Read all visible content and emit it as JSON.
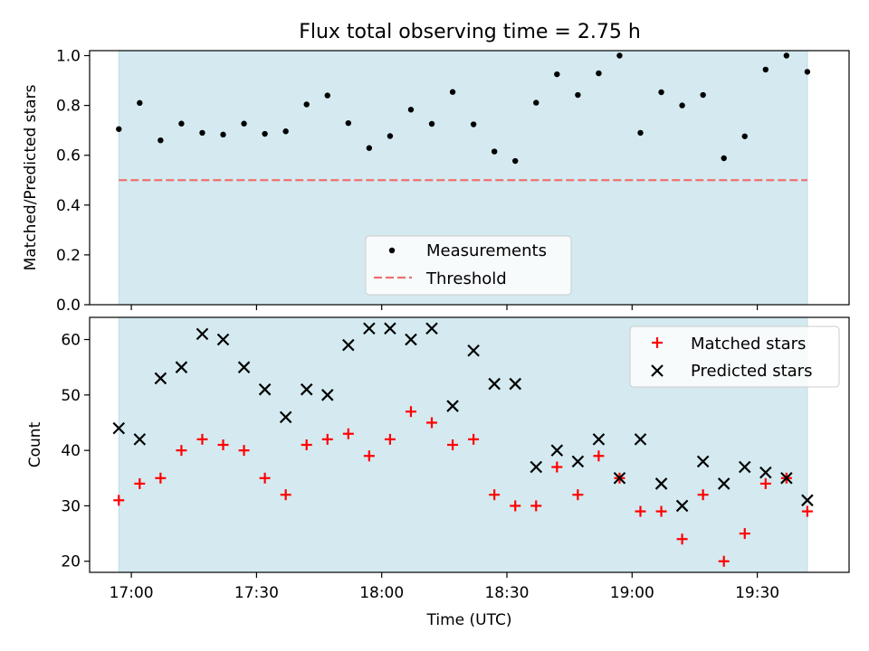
{
  "title": "Flux total observing time = 2.75 h",
  "colors": {
    "shade": "#d4eaf0",
    "measurement": "#000000",
    "threshold": "#f07070",
    "matched": "#ff0000",
    "predicted": "#000000"
  },
  "chart_data": [
    {
      "type": "scatter",
      "panel": "top",
      "ylabel": "Matched/Predicted stars",
      "xlabel": "",
      "ylim": [
        0.0,
        1.02
      ],
      "yticks": [
        0.0,
        0.2,
        0.4,
        0.6,
        0.8,
        1.0
      ],
      "ytick_labels": [
        "0.0",
        "0.2",
        "0.4",
        "0.6",
        "0.8",
        "1.0"
      ],
      "legend_position": "bottom-center",
      "shaded_span": [
        "16:57",
        "19:42"
      ],
      "series": [
        {
          "name": "Measurements",
          "marker": "dot",
          "x": [
            "16:57",
            "17:02",
            "17:07",
            "17:12",
            "17:17",
            "17:22",
            "17:27",
            "17:32",
            "17:37",
            "17:42",
            "17:47",
            "17:52",
            "17:57",
            "18:02",
            "18:07",
            "18:12",
            "18:17",
            "18:22",
            "18:27",
            "18:32",
            "18:37",
            "18:42",
            "18:47",
            "18:52",
            "18:57",
            "19:02",
            "19:07",
            "19:12",
            "19:17",
            "19:22",
            "19:27",
            "19:32",
            "19:37",
            "19:42"
          ],
          "y": [
            0.705,
            0.81,
            0.66,
            0.727,
            0.69,
            0.683,
            0.727,
            0.686,
            0.696,
            0.804,
            0.84,
            0.729,
            0.629,
            0.677,
            0.783,
            0.726,
            0.854,
            0.724,
            0.615,
            0.577,
            0.811,
            0.925,
            0.842,
            0.929,
            1.0,
            0.69,
            0.853,
            0.8,
            0.842,
            0.588,
            0.676,
            0.944,
            1.0,
            0.935
          ]
        },
        {
          "name": "Threshold",
          "style": "dashed",
          "x": [
            "16:57",
            "19:42"
          ],
          "y": [
            0.5,
            0.5
          ]
        }
      ]
    },
    {
      "type": "scatter",
      "panel": "bottom",
      "ylabel": "Count",
      "xlabel": "Time (UTC)",
      "ylim": [
        18,
        64
      ],
      "yticks": [
        20,
        30,
        40,
        50,
        60
      ],
      "ytick_labels": [
        "20",
        "30",
        "40",
        "50",
        "60"
      ],
      "xticks": [
        "17:00",
        "17:30",
        "18:00",
        "18:30",
        "19:00",
        "19:30"
      ],
      "xlim": [
        "16:50",
        "19:52"
      ],
      "legend_position": "top-right",
      "shaded_span": [
        "16:57",
        "19:42"
      ],
      "series": [
        {
          "name": "Matched stars",
          "marker": "plus",
          "x": [
            "16:57",
            "17:02",
            "17:07",
            "17:12",
            "17:17",
            "17:22",
            "17:27",
            "17:32",
            "17:37",
            "17:42",
            "17:47",
            "17:52",
            "17:57",
            "18:02",
            "18:07",
            "18:12",
            "18:17",
            "18:22",
            "18:27",
            "18:32",
            "18:37",
            "18:42",
            "18:47",
            "18:52",
            "18:57",
            "19:02",
            "19:07",
            "19:12",
            "19:17",
            "19:22",
            "19:27",
            "19:32",
            "19:37",
            "19:42"
          ],
          "y": [
            31,
            34,
            35,
            40,
            42,
            41,
            40,
            35,
            32,
            41,
            42,
            43,
            39,
            42,
            47,
            45,
            41,
            42,
            32,
            30,
            30,
            37,
            32,
            39,
            35,
            29,
            29,
            24,
            32,
            20,
            25,
            34,
            35,
            29
          ]
        },
        {
          "name": "Predicted stars",
          "marker": "x",
          "x": [
            "16:57",
            "17:02",
            "17:07",
            "17:12",
            "17:17",
            "17:22",
            "17:27",
            "17:32",
            "17:37",
            "17:42",
            "17:47",
            "17:52",
            "17:57",
            "18:02",
            "18:07",
            "18:12",
            "18:17",
            "18:22",
            "18:27",
            "18:32",
            "18:37",
            "18:42",
            "18:47",
            "18:52",
            "18:57",
            "19:02",
            "19:07",
            "19:12",
            "19:17",
            "19:22",
            "19:27",
            "19:32",
            "19:37",
            "19:42"
          ],
          "y": [
            44,
            42,
            53,
            55,
            61,
            60,
            55,
            51,
            46,
            51,
            50,
            59,
            62,
            62,
            60,
            62,
            48,
            58,
            52,
            52,
            37,
            40,
            38,
            42,
            35,
            42,
            34,
            30,
            38,
            34,
            37,
            36,
            35,
            31
          ]
        }
      ]
    }
  ]
}
